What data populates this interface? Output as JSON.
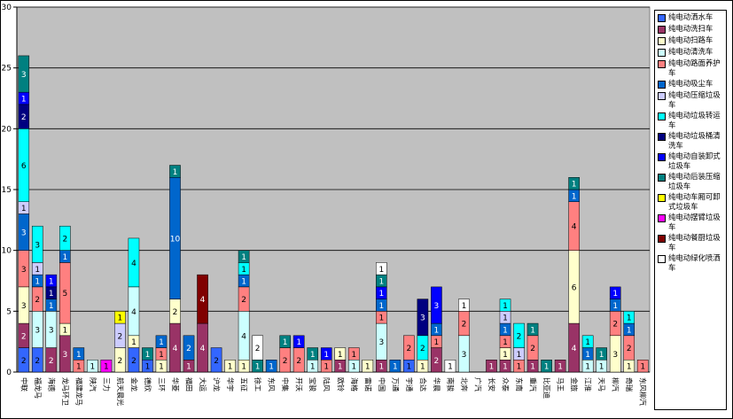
{
  "chart_data": {
    "type": "bar",
    "stacked": true,
    "ylim": [
      0,
      30
    ],
    "yticks": [
      0,
      5,
      10,
      15,
      20,
      25,
      30
    ],
    "grid": true,
    "legend_position": "right",
    "categories": [
      "中联",
      "福龙马",
      "海德",
      "龙马环卫",
      "福建龙马",
      "陕汽",
      "三力",
      "航天晨光",
      "金龙",
      "德欣",
      "三环",
      "华菱",
      "福田",
      "大运",
      "沪龙",
      "华宇",
      "五征",
      "徐工",
      "东风",
      "中集",
      "开沃",
      "宝骏",
      "陆风",
      "欧铃",
      "海格",
      "雷诺",
      "中国",
      "万通",
      "宇通",
      "合达",
      "华晨",
      "南骏",
      "北奔",
      "广汽",
      "长安",
      "众泰",
      "东南",
      "重汽",
      "比亚迪",
      "马王",
      "金旅",
      "江淮",
      "天马",
      "柳汽",
      "奇瑞",
      "东风柳汽"
    ],
    "series": [
      {
        "name": "纯电动洒水车",
        "color": "#3366ff",
        "values": [
          2,
          2,
          0,
          0,
          0,
          0,
          0,
          0,
          2,
          1,
          0,
          0,
          0,
          0,
          2,
          0,
          0,
          0,
          0,
          0,
          0,
          0,
          0,
          0,
          0,
          0,
          0,
          0,
          1,
          0,
          0,
          0,
          0,
          0,
          0,
          0,
          0,
          0,
          0,
          0,
          0,
          0,
          0,
          0,
          0,
          0
        ]
      },
      {
        "name": "纯电动洗扫车",
        "color": "#993366",
        "values": [
          2,
          0,
          2,
          3,
          0,
          0,
          0,
          0,
          0,
          0,
          0,
          4,
          1,
          4,
          0,
          0,
          0,
          0,
          0,
          0,
          0,
          0,
          0,
          1,
          0,
          0,
          1,
          0,
          0,
          0,
          2,
          0,
          0,
          0,
          1,
          1,
          0,
          1,
          0,
          1,
          4,
          0,
          0,
          0,
          0,
          0
        ]
      },
      {
        "name": "纯电动扫路车",
        "color": "#ffffcc",
        "values": [
          3,
          0,
          0,
          1,
          0,
          0,
          0,
          2,
          1,
          0,
          1,
          2,
          0,
          0,
          0,
          1,
          1,
          0,
          0,
          0,
          0,
          0,
          0,
          1,
          0,
          1,
          0,
          0,
          0,
          1,
          0,
          0,
          0,
          0,
          0,
          1,
          0,
          0,
          0,
          0,
          6,
          0,
          0,
          3,
          1,
          0
        ]
      },
      {
        "name": "纯电动清洗车",
        "color": "#ccffff",
        "values": [
          0,
          3,
          3,
          0,
          0,
          1,
          0,
          0,
          4,
          0,
          0,
          0,
          0,
          0,
          0,
          0,
          4,
          0,
          0,
          0,
          0,
          1,
          0,
          0,
          1,
          0,
          3,
          0,
          0,
          0,
          0,
          0,
          3,
          0,
          0,
          0,
          0,
          0,
          0,
          0,
          0,
          1,
          1,
          0,
          0,
          0
        ]
      },
      {
        "name": "纯电动路面养护车",
        "color": "#ff8080",
        "values": [
          3,
          2,
          0,
          5,
          1,
          0,
          0,
          0,
          0,
          0,
          1,
          0,
          0,
          0,
          0,
          0,
          2,
          0,
          0,
          2,
          2,
          0,
          1,
          0,
          1,
          0,
          1,
          0,
          2,
          0,
          1,
          0,
          2,
          0,
          0,
          1,
          1,
          2,
          0,
          0,
          4,
          0,
          0,
          2,
          2,
          1
        ]
      },
      {
        "name": "纯电动吸尘车",
        "color": "#0066cc",
        "values": [
          3,
          1,
          1,
          1,
          1,
          0,
          0,
          0,
          0,
          0,
          1,
          10,
          2,
          0,
          0,
          0,
          1,
          0,
          1,
          0,
          0,
          0,
          0,
          0,
          0,
          0,
          1,
          1,
          0,
          0,
          1,
          0,
          0,
          0,
          0,
          1,
          0,
          0,
          0,
          0,
          1,
          1,
          0,
          1,
          1,
          0
        ]
      },
      {
        "name": "纯电动压缩垃圾车",
        "color": "#ccccff",
        "values": [
          1,
          1,
          0,
          0,
          0,
          0,
          0,
          2,
          0,
          0,
          0,
          0,
          0,
          0,
          0,
          0,
          0,
          0,
          0,
          0,
          0,
          0,
          0,
          0,
          0,
          0,
          0,
          0,
          0,
          0,
          0,
          0,
          0,
          0,
          0,
          1,
          1,
          0,
          0,
          0,
          0,
          0,
          0,
          0,
          0,
          0
        ]
      },
      {
        "name": "纯电动垃圾转运车",
        "color": "#00ffff",
        "values": [
          6,
          3,
          0,
          2,
          0,
          0,
          0,
          0,
          4,
          0,
          0,
          0,
          0,
          0,
          0,
          0,
          1,
          0,
          0,
          0,
          0,
          0,
          0,
          0,
          0,
          0,
          0,
          0,
          0,
          2,
          0,
          0,
          0,
          0,
          0,
          1,
          2,
          0,
          0,
          0,
          0,
          1,
          0,
          0,
          1,
          0
        ]
      },
      {
        "name": "纯电动垃圾桶清洗车",
        "color": "#000080",
        "values": [
          2,
          0,
          1,
          0,
          0,
          0,
          0,
          0,
          0,
          0,
          0,
          0,
          0,
          0,
          0,
          0,
          0,
          0,
          0,
          0,
          0,
          0,
          0,
          0,
          0,
          0,
          0,
          0,
          0,
          3,
          0,
          0,
          0,
          0,
          0,
          0,
          0,
          0,
          0,
          0,
          0,
          0,
          0,
          0,
          0,
          0
        ]
      },
      {
        "name": "纯电动自装卸式垃圾车",
        "color": "#0000ff",
        "values": [
          1,
          0,
          1,
          0,
          0,
          0,
          0,
          0,
          0,
          0,
          0,
          0,
          0,
          0,
          0,
          0,
          0,
          0,
          0,
          0,
          1,
          0,
          1,
          0,
          0,
          0,
          1,
          0,
          0,
          0,
          3,
          0,
          0,
          0,
          0,
          0,
          0,
          0,
          0,
          0,
          0,
          0,
          0,
          1,
          0,
          0
        ]
      },
      {
        "name": "纯电动后装压缩垃圾车",
        "color": "#008080",
        "values": [
          3,
          0,
          0,
          0,
          0,
          0,
          0,
          0,
          0,
          1,
          0,
          1,
          0,
          0,
          0,
          0,
          1,
          1,
          0,
          1,
          0,
          1,
          0,
          0,
          0,
          0,
          1,
          0,
          0,
          0,
          0,
          0,
          0,
          0,
          0,
          0,
          0,
          1,
          1,
          0,
          1,
          0,
          1,
          0,
          0,
          0
        ]
      },
      {
        "name": "纯电动车厢可卸式垃圾车",
        "color": "#ffff00",
        "values": [
          0,
          0,
          0,
          0,
          0,
          0,
          0,
          1,
          0,
          0,
          0,
          0,
          0,
          0,
          0,
          0,
          0,
          0,
          0,
          0,
          0,
          0,
          0,
          0,
          0,
          0,
          0,
          0,
          0,
          0,
          0,
          0,
          0,
          0,
          0,
          0,
          0,
          0,
          0,
          0,
          0,
          0,
          0,
          0,
          0,
          0
        ]
      },
      {
        "name": "纯电动摆臂垃圾车",
        "color": "#ff00ff",
        "values": [
          0,
          0,
          0,
          0,
          0,
          0,
          1,
          0,
          0,
          0,
          0,
          0,
          0,
          0,
          0,
          0,
          0,
          0,
          0,
          0,
          0,
          0,
          0,
          0,
          0,
          0,
          0,
          0,
          0,
          0,
          0,
          0,
          0,
          0,
          0,
          0,
          0,
          0,
          0,
          0,
          0,
          0,
          0,
          0,
          0,
          0
        ]
      },
      {
        "name": "纯电动餐厨垃圾车",
        "color": "#800000",
        "values": [
          0,
          0,
          0,
          0,
          0,
          0,
          0,
          0,
          0,
          0,
          0,
          0,
          0,
          4,
          0,
          0,
          0,
          0,
          0,
          0,
          0,
          0,
          0,
          0,
          0,
          0,
          0,
          0,
          0,
          0,
          0,
          0,
          0,
          0,
          0,
          0,
          0,
          0,
          0,
          0,
          0,
          0,
          0,
          0,
          0,
          0
        ]
      },
      {
        "name": "纯电动绿化喷洒车",
        "color": "#ffffff",
        "values": [
          0,
          0,
          0,
          0,
          0,
          0,
          0,
          0,
          0,
          0,
          0,
          0,
          0,
          0,
          0,
          0,
          0,
          2,
          0,
          0,
          0,
          0,
          0,
          0,
          0,
          0,
          1,
          0,
          0,
          0,
          0,
          1,
          1,
          0,
          0,
          0,
          0,
          0,
          0,
          0,
          0,
          0,
          0,
          0,
          0,
          0
        ]
      }
    ]
  },
  "legend": {
    "items": [
      {
        "label": "纯电动洒水车",
        "color": "#3366ff"
      },
      {
        "label": "纯电动洗扫车",
        "color": "#993366"
      },
      {
        "label": "纯电动扫路车",
        "color": "#ffffcc"
      },
      {
        "label": "纯电动清洗车",
        "color": "#ccffff"
      },
      {
        "label": "纯电动路面养护车",
        "color": "#ff8080"
      },
      {
        "label": "纯电动吸尘车",
        "color": "#0066cc"
      },
      {
        "label": "纯电动压缩垃圾车",
        "color": "#ccccff"
      },
      {
        "label": "纯电动垃圾转运车",
        "color": "#00ffff"
      },
      {
        "label": "纯电动垃圾桶清洗车",
        "color": "#000080"
      },
      {
        "label": "纯电动自装卸式垃圾车",
        "color": "#0000ff"
      },
      {
        "label": "纯电动后装压缩垃圾车",
        "color": "#008080"
      },
      {
        "label": "纯电动车厢可卸式垃圾车",
        "color": "#ffff00"
      },
      {
        "label": "纯电动摆臂垃圾车",
        "color": "#ff00ff"
      },
      {
        "label": "纯电动餐厨垃圾车",
        "color": "#800000"
      },
      {
        "label": "纯电动绿化喷洒车",
        "color": "#ffffff"
      }
    ]
  }
}
